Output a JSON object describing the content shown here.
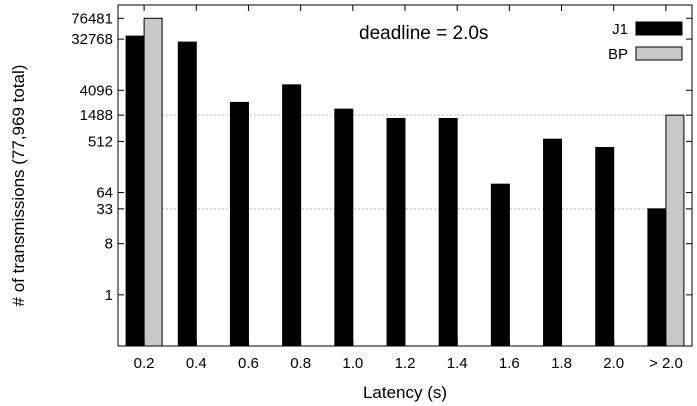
{
  "chart_data": {
    "type": "bar",
    "title": "",
    "annotation": "deadline = 2.0s",
    "xlabel": "Latency (s)",
    "ylabel": "# of transmissions (77,969 total)",
    "yscale": "log2",
    "ylim": [
      0.125,
      131072
    ],
    "yticks": [
      1,
      8,
      33,
      64,
      512,
      1488,
      4096,
      32768,
      76481
    ],
    "categories": [
      "0.2",
      "0.4",
      "0.6",
      "0.8",
      "1.0",
      "1.2",
      "1.4",
      "1.6",
      "1.8",
      "2.0",
      "> 2.0"
    ],
    "series": [
      {
        "name": "J1",
        "color": "#000000",
        "values": [
          37000,
          29000,
          2500,
          5100,
          1900,
          1300,
          1300,
          90,
          560,
          400,
          33
        ]
      },
      {
        "name": "BP",
        "color": "#c8c8c8",
        "values": [
          76481,
          0,
          0,
          0,
          0,
          0,
          0,
          0,
          0,
          0,
          1488
        ]
      }
    ],
    "reference_lines": [
      1488,
      33
    ],
    "legend_position": "top-right",
    "grid": false
  }
}
